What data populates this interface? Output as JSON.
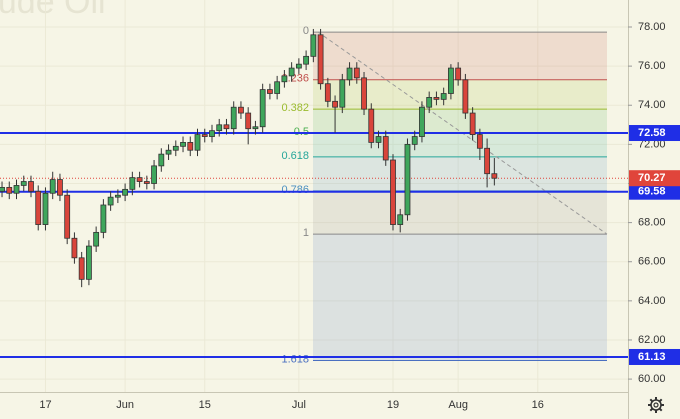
{
  "chart_data": {
    "type": "candlestick",
    "watermark": "Crude Oil",
    "xlim": [
      -0.28,
      86.46
    ],
    "ylim": [
      59.34,
      79.38
    ],
    "xticks": [
      {
        "value": 6,
        "label": "17"
      },
      {
        "value": 17,
        "label": "Jun"
      },
      {
        "value": 28,
        "label": "15"
      },
      {
        "value": 41,
        "label": "Jul"
      },
      {
        "value": 54,
        "label": "19"
      },
      {
        "value": 63,
        "label": "Aug"
      },
      {
        "value": 74,
        "label": "16"
      }
    ],
    "yticks": [
      {
        "value": 60,
        "label": "60.00"
      },
      {
        "value": 62,
        "label": "62.00"
      },
      {
        "value": 64,
        "label": "64.00"
      },
      {
        "value": 66,
        "label": "66.00"
      },
      {
        "value": 68,
        "label": "68.00"
      },
      {
        "value": 70,
        "label": "70.00"
      },
      {
        "value": 72,
        "label": "72.00"
      },
      {
        "value": 74,
        "label": "74.00"
      },
      {
        "value": 76,
        "label": "76.00"
      },
      {
        "value": 78,
        "label": "78.00"
      }
    ],
    "grid": true,
    "up_color": "#3fa65c",
    "down_color": "#d9453b",
    "candles": {
      "open": [
        69.6,
        69.8,
        69.5,
        69.9,
        70.1,
        69.6,
        67.9,
        69.5,
        70.2,
        69.4,
        67.2,
        66.2,
        65.1,
        66.8,
        67.5,
        68.9,
        69.3,
        69.4,
        69.7,
        70.3,
        70.1,
        70.0,
        70.9,
        71.5,
        71.7,
        71.9,
        72.1,
        71.7,
        72.5,
        72.4,
        72.7,
        73.0,
        72.8,
        73.9,
        73.6,
        72.8,
        72.9,
        74.8,
        74.6,
        75.2,
        75.5,
        75.9,
        76.1,
        76.5,
        77.6,
        75.1,
        74.2,
        73.9,
        75.3,
        75.9,
        75.4,
        73.8,
        72.1,
        72.4,
        71.2,
        67.9,
        68.4,
        72.0,
        72.4,
        73.9,
        74.4,
        74.3,
        74.6,
        75.9,
        75.3,
        73.6,
        72.5,
        71.8,
        70.5
      ],
      "high": [
        70.1,
        70.1,
        70.2,
        70.4,
        70.4,
        69.9,
        69.8,
        70.6,
        70.5,
        69.7,
        67.5,
        66.5,
        67.1,
        67.8,
        69.2,
        69.6,
        69.7,
        70.0,
        70.6,
        70.6,
        70.4,
        71.2,
        71.8,
        72.0,
        72.2,
        72.4,
        72.4,
        72.8,
        72.8,
        73.0,
        73.3,
        73.3,
        74.2,
        74.2,
        73.9,
        73.2,
        75.1,
        75.1,
        75.5,
        75.8,
        76.2,
        76.4,
        76.8,
        77.9,
        77.9,
        75.4,
        74.5,
        75.6,
        76.2,
        76.2,
        75.7,
        74.1,
        72.7,
        72.7,
        71.5,
        68.7,
        72.3,
        72.7,
        74.2,
        74.7,
        74.7,
        74.9,
        76.1,
        76.2,
        75.6,
        73.9,
        72.8,
        72.3,
        71.3
      ],
      "low": [
        69.3,
        69.2,
        69.2,
        69.6,
        69.3,
        67.6,
        67.6,
        69.2,
        69.1,
        66.9,
        65.9,
        64.7,
        64.8,
        66.5,
        67.2,
        68.6,
        69.0,
        69.1,
        69.4,
        69.8,
        69.7,
        69.7,
        70.6,
        71.2,
        71.4,
        71.6,
        71.4,
        71.4,
        72.1,
        72.1,
        72.4,
        72.5,
        72.5,
        73.3,
        72.0,
        72.5,
        72.6,
        74.3,
        74.3,
        74.9,
        75.2,
        75.6,
        75.8,
        76.2,
        74.8,
        73.9,
        72.6,
        73.6,
        75.0,
        75.1,
        73.5,
        71.8,
        71.8,
        70.9,
        67.6,
        67.5,
        68.1,
        71.7,
        72.1,
        73.6,
        74.0,
        74.0,
        74.3,
        75.0,
        73.3,
        72.2,
        71.2,
        69.8,
        69.9
      ],
      "close": [
        69.8,
        69.5,
        69.9,
        70.1,
        69.6,
        67.9,
        69.5,
        70.2,
        69.4,
        67.2,
        66.2,
        65.1,
        66.8,
        67.5,
        68.9,
        69.3,
        69.4,
        69.7,
        70.3,
        70.1,
        70.0,
        70.9,
        71.5,
        71.7,
        71.9,
        72.1,
        71.7,
        72.5,
        72.4,
        72.7,
        73.0,
        72.8,
        73.9,
        73.6,
        72.8,
        72.9,
        74.8,
        74.6,
        75.2,
        75.5,
        75.9,
        76.1,
        76.5,
        77.6,
        75.1,
        74.2,
        73.9,
        75.3,
        75.9,
        75.4,
        73.8,
        72.1,
        72.4,
        71.2,
        67.9,
        68.4,
        72.0,
        72.4,
        73.9,
        74.4,
        74.3,
        74.6,
        75.9,
        75.3,
        73.6,
        72.5,
        71.8,
        70.5,
        70.27
      ]
    },
    "fib_levels": [
      {
        "ratio": 0,
        "price": 77.74,
        "color": "#888888"
      },
      {
        "ratio": 0.236,
        "price": 75.3,
        "color": "#c0504d"
      },
      {
        "ratio": 0.382,
        "price": 73.8,
        "color": "#9bbb2f"
      },
      {
        "ratio": 0.5,
        "price": 72.58,
        "color": "#4caf50"
      },
      {
        "ratio": 0.618,
        "price": 71.36,
        "color": "#26a69a"
      },
      {
        "ratio": 0.786,
        "price": 69.62,
        "color": "#4a8fc0"
      },
      {
        "ratio": 1,
        "price": 67.41,
        "color": "#888888"
      },
      {
        "ratio": 1.618,
        "price": 60.95,
        "color": "#4a6fc0"
      }
    ],
    "hlines": [
      {
        "value": 72.58,
        "label": "72.58",
        "color": "#1f2ee6"
      },
      {
        "value": 69.58,
        "label": "69.58",
        "color": "#1f2ee6"
      },
      {
        "value": 61.13,
        "label": "61.13",
        "color": "#1f2ee6"
      }
    ],
    "last_price": {
      "value": 70.27,
      "label": "70.27",
      "color": "#e0453b"
    }
  }
}
